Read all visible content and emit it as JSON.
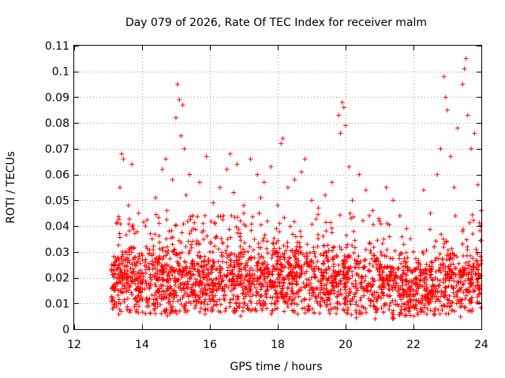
{
  "chart_data": {
    "type": "scatter",
    "title": "Day 079 of 2026, Rate Of TEC Index for receiver malm",
    "xlabel": "GPS time / hours",
    "ylabel": "ROTI / TECUs",
    "xlim": [
      12,
      24
    ],
    "ylim": [
      0,
      0.11
    ],
    "xticks": [
      12,
      14,
      16,
      18,
      20,
      22,
      24
    ],
    "xtick_labels": [
      "12",
      "14",
      "16",
      "18",
      "20",
      "22",
      "24"
    ],
    "yticks": [
      0,
      0.01,
      0.02,
      0.03,
      0.04,
      0.05,
      0.06,
      0.07,
      0.08,
      0.09,
      0.1,
      0.11
    ],
    "ytick_labels": [
      "0",
      "0.01",
      "0.02",
      "0.03",
      "0.04",
      "0.05",
      "0.06",
      "0.07",
      "0.08",
      "0.09",
      "0.1",
      "0.11"
    ],
    "grid": true,
    "marker": "+",
    "color": "#ff0000",
    "x_range_data": [
      13.1,
      24.0
    ],
    "series": [
      {
        "name": "ROTI",
        "points": [
          [
            13.15,
            0.012
          ],
          [
            13.2,
            0.025
          ],
          [
            13.25,
            0.041
          ],
          [
            13.3,
            0.018
          ],
          [
            13.35,
            0.055
          ],
          [
            13.4,
            0.068
          ],
          [
            13.45,
            0.066
          ],
          [
            13.5,
            0.03
          ],
          [
            13.6,
            0.048
          ],
          [
            13.7,
            0.064
          ],
          [
            13.8,
            0.028
          ],
          [
            13.9,
            0.045
          ],
          [
            14.0,
            0.022
          ],
          [
            14.1,
            0.04
          ],
          [
            14.2,
            0.009
          ],
          [
            14.3,
            0.035
          ],
          [
            14.4,
            0.051
          ],
          [
            14.5,
            0.027
          ],
          [
            14.6,
            0.062
          ],
          [
            14.7,
            0.066
          ],
          [
            14.8,
            0.038
          ],
          [
            14.9,
            0.058
          ],
          [
            15.0,
            0.082
          ],
          [
            15.05,
            0.095
          ],
          [
            15.1,
            0.089
          ],
          [
            15.15,
            0.075
          ],
          [
            15.2,
            0.087
          ],
          [
            15.25,
            0.07
          ],
          [
            15.3,
            0.052
          ],
          [
            15.4,
            0.06
          ],
          [
            15.5,
            0.044
          ],
          [
            15.6,
            0.033
          ],
          [
            15.7,
            0.057
          ],
          [
            15.8,
            0.041
          ],
          [
            15.9,
            0.067
          ],
          [
            16.0,
            0.03
          ],
          [
            16.1,
            0.049
          ],
          [
            16.2,
            0.036
          ],
          [
            16.3,
            0.055
          ],
          [
            16.4,
            0.044
          ],
          [
            16.5,
            0.062
          ],
          [
            16.6,
            0.068
          ],
          [
            16.7,
            0.053
          ],
          [
            16.8,
            0.064
          ],
          [
            16.9,
            0.042
          ],
          [
            17.0,
            0.048
          ],
          [
            17.2,
            0.066
          ],
          [
            17.4,
            0.06
          ],
          [
            17.5,
            0.051
          ],
          [
            17.6,
            0.057
          ],
          [
            17.8,
            0.063
          ],
          [
            18.0,
            0.048
          ],
          [
            18.1,
            0.072
          ],
          [
            18.15,
            0.074
          ],
          [
            18.3,
            0.055
          ],
          [
            18.5,
            0.058
          ],
          [
            18.7,
            0.061
          ],
          [
            18.8,
            0.066
          ],
          [
            19.0,
            0.05
          ],
          [
            19.2,
            0.047
          ],
          [
            19.4,
            0.052
          ],
          [
            19.6,
            0.057
          ],
          [
            19.8,
            0.083
          ],
          [
            19.85,
            0.076
          ],
          [
            19.9,
            0.088
          ],
          [
            19.95,
            0.086
          ],
          [
            20.0,
            0.079
          ],
          [
            20.1,
            0.063
          ],
          [
            20.2,
            0.05
          ],
          [
            20.4,
            0.06
          ],
          [
            20.6,
            0.054
          ],
          [
            20.8,
            0.046
          ],
          [
            21.0,
            0.042
          ],
          [
            21.2,
            0.055
          ],
          [
            21.4,
            0.05
          ],
          [
            21.6,
            0.044
          ],
          [
            21.8,
            0.039
          ],
          [
            22.0,
            0.03
          ],
          [
            22.2,
            0.022
          ],
          [
            22.3,
            0.054
          ],
          [
            22.5,
            0.045
          ],
          [
            22.7,
            0.06
          ],
          [
            22.8,
            0.07
          ],
          [
            22.9,
            0.098
          ],
          [
            22.95,
            0.09
          ],
          [
            23.0,
            0.085
          ],
          [
            23.1,
            0.067
          ],
          [
            23.2,
            0.055
          ],
          [
            23.3,
            0.078
          ],
          [
            23.45,
            0.095
          ],
          [
            23.5,
            0.101
          ],
          [
            23.55,
            0.105
          ],
          [
            23.6,
            0.083
          ],
          [
            23.7,
            0.07
          ],
          [
            23.8,
            0.076
          ],
          [
            23.9,
            0.056
          ],
          [
            24.0,
            0.046
          ]
        ],
        "density_profile": {
          "description": "dense scatter of small values concentrated between 0.005 and 0.045",
          "hours": [
            13,
            14,
            15,
            16,
            17,
            18,
            19,
            20,
            21,
            22,
            23,
            24
          ],
          "typical": [
            0.02,
            0.019,
            0.02,
            0.019,
            0.02,
            0.021,
            0.02,
            0.02,
            0.019,
            0.016,
            0.019,
            0.02
          ],
          "upper": [
            0.045,
            0.042,
            0.048,
            0.044,
            0.046,
            0.047,
            0.045,
            0.046,
            0.044,
            0.035,
            0.046,
            0.044
          ],
          "lower": [
            0.007,
            0.006,
            0.006,
            0.007,
            0.007,
            0.007,
            0.006,
            0.006,
            0.006,
            0.005,
            0.006,
            0.007
          ]
        }
      }
    ]
  }
}
